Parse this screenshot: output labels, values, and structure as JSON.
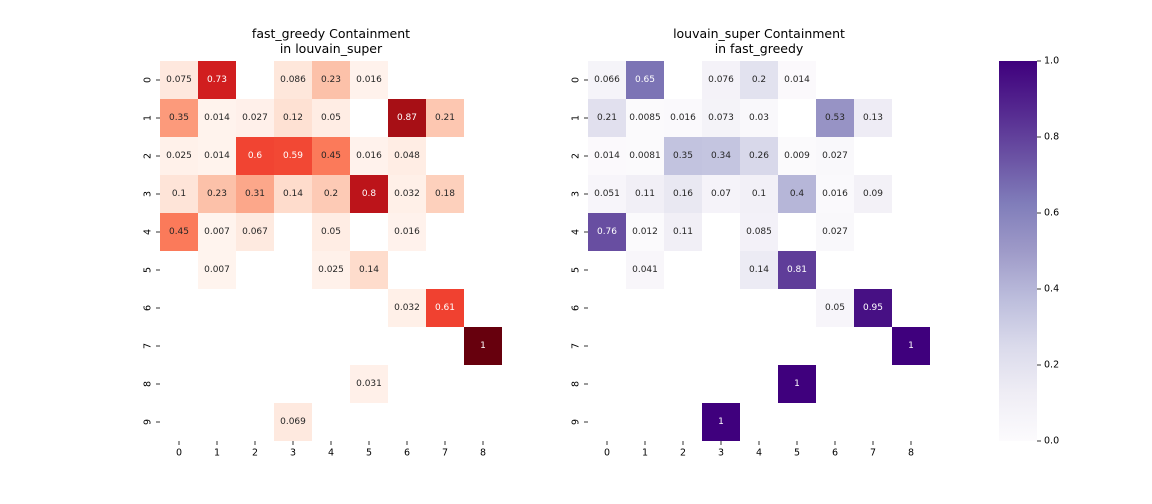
{
  "chart_data": [
    {
      "type": "heatmap",
      "title_line1": "fast_greedy Containment",
      "title_line2": "in louvain_super",
      "colormap": "Reds",
      "rows": [
        "0",
        "1",
        "2",
        "3",
        "4",
        "5",
        "6",
        "7",
        "8",
        "9"
      ],
      "cols": [
        "0",
        "1",
        "2",
        "3",
        "4",
        "5",
        "6",
        "7",
        "8"
      ],
      "vmin": 0,
      "vmax": 1,
      "values": [
        [
          0.075,
          0.73,
          null,
          0.086,
          0.23,
          0.016,
          null,
          null,
          null
        ],
        [
          0.35,
          0.014,
          0.027,
          0.12,
          0.05,
          null,
          0.87,
          0.21,
          null
        ],
        [
          0.025,
          0.014,
          0.6,
          0.59,
          0.45,
          0.016,
          0.048,
          null,
          null
        ],
        [
          0.1,
          0.23,
          0.31,
          0.14,
          0.2,
          0.8,
          0.032,
          0.18,
          null
        ],
        [
          0.45,
          0.007,
          0.067,
          null,
          0.05,
          null,
          0.016,
          null,
          null
        ],
        [
          null,
          0.007,
          null,
          null,
          0.025,
          0.14,
          null,
          null,
          null
        ],
        [
          null,
          null,
          null,
          null,
          null,
          null,
          0.032,
          0.61,
          null
        ],
        [
          null,
          null,
          null,
          null,
          null,
          null,
          null,
          null,
          1
        ],
        [
          null,
          null,
          null,
          null,
          null,
          0.031,
          null,
          null,
          null
        ],
        [
          null,
          null,
          null,
          0.069,
          null,
          null,
          null,
          null,
          null
        ]
      ]
    },
    {
      "type": "heatmap",
      "title_line1": "louvain_super Containment",
      "title_line2": "in fast_greedy",
      "colormap": "Purples",
      "rows": [
        "0",
        "1",
        "2",
        "3",
        "4",
        "5",
        "6",
        "7",
        "8",
        "9"
      ],
      "cols": [
        "0",
        "1",
        "2",
        "3",
        "4",
        "5",
        "6",
        "7",
        "8"
      ],
      "vmin": 0,
      "vmax": 1,
      "values": [
        [
          0.066,
          0.65,
          null,
          0.076,
          0.2,
          0.014,
          null,
          null,
          null
        ],
        [
          0.21,
          0.0085,
          0.016,
          0.073,
          0.03,
          null,
          0.53,
          0.13,
          null
        ],
        [
          0.014,
          0.0081,
          0.35,
          0.34,
          0.26,
          0.009,
          0.027,
          null,
          null
        ],
        [
          0.051,
          0.11,
          0.16,
          0.07,
          0.1,
          0.4,
          0.016,
          0.09,
          null
        ],
        [
          0.76,
          0.012,
          0.11,
          null,
          0.085,
          null,
          0.027,
          null,
          null
        ],
        [
          null,
          0.041,
          null,
          null,
          0.14,
          0.81,
          null,
          null,
          null
        ],
        [
          null,
          null,
          null,
          null,
          null,
          null,
          0.05,
          0.95,
          null
        ],
        [
          null,
          null,
          null,
          null,
          null,
          null,
          null,
          null,
          1
        ],
        [
          null,
          null,
          null,
          null,
          null,
          1,
          null,
          null,
          null
        ],
        [
          null,
          null,
          null,
          1,
          null,
          null,
          null,
          null,
          null
        ]
      ],
      "colorbar": {
        "ticks": [
          "0.0",
          "0.2",
          "0.4",
          "0.6",
          "0.8",
          "1.0"
        ],
        "tick_values": [
          0,
          0.2,
          0.4,
          0.6,
          0.8,
          1.0
        ]
      }
    }
  ]
}
